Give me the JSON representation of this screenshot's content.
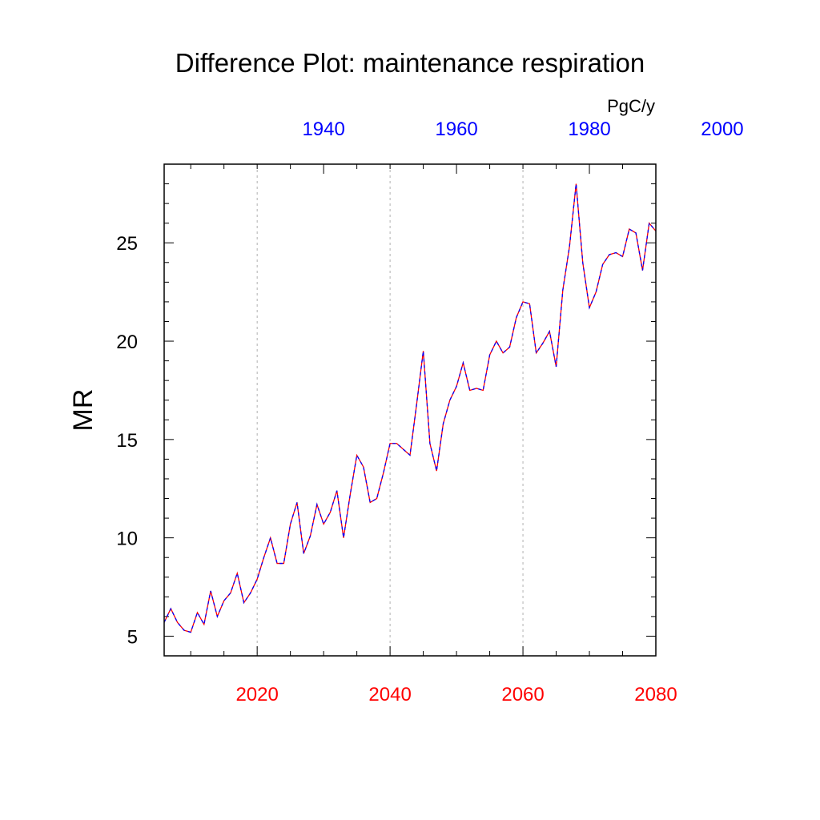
{
  "chart_data": {
    "type": "line",
    "title": "Difference Plot: maintenance respiration",
    "ylabel": "MR",
    "units": "PgC/y",
    "grid": "vertical dashed at bottom-axis major ticks",
    "legend": "none",
    "colors": {
      "bottom_axis": "#ff0000",
      "top_axis": "#0000ff",
      "series_a": "#ff0000",
      "series_b": "#0000ff"
    },
    "xlim": [
      2006,
      2080
    ],
    "ylim": [
      4,
      29
    ],
    "x_bottom_ticks": [
      2020,
      2040,
      2060,
      2080
    ],
    "x_bottom_tick_labels": [
      "2020",
      "2040",
      "2060",
      "2080"
    ],
    "x_top_ticks": [
      1940,
      1960,
      1980,
      2000
    ],
    "x_top_tick_labels": [
      "1940",
      "1960",
      "1980",
      "2000"
    ],
    "top_axis_offset_years": -90,
    "y_ticks": [
      5,
      10,
      15,
      20,
      25
    ],
    "y_tick_labels": [
      "5",
      "10",
      "15",
      "20",
      "25"
    ],
    "x": [
      2006,
      2007,
      2008,
      2009,
      2010,
      2011,
      2012,
      2013,
      2014,
      2015,
      2016,
      2017,
      2018,
      2019,
      2020,
      2021,
      2022,
      2023,
      2024,
      2025,
      2026,
      2027,
      2028,
      2029,
      2030,
      2031,
      2032,
      2033,
      2034,
      2035,
      2036,
      2037,
      2038,
      2039,
      2040,
      2041,
      2042,
      2043,
      2044,
      2045,
      2046,
      2047,
      2048,
      2049,
      2050,
      2051,
      2052,
      2053,
      2054,
      2055,
      2056,
      2057,
      2058,
      2059,
      2060,
      2061,
      2062,
      2063,
      2064,
      2065,
      2066,
      2067,
      2068,
      2069,
      2070,
      2071,
      2072,
      2073,
      2074,
      2075,
      2076,
      2077,
      2078,
      2079,
      2080
    ],
    "series": [
      {
        "values": [
          5.7,
          6.4,
          5.7,
          5.3,
          5.2,
          6.2,
          5.6,
          7.3,
          6.0,
          6.8,
          7.2,
          8.2,
          6.7,
          7.2,
          7.9,
          9.0,
          10.0,
          8.7,
          8.7,
          10.7,
          11.8,
          9.2,
          10.1,
          11.7,
          10.7,
          11.3,
          12.4,
          10.0,
          12.2,
          14.2,
          13.6,
          11.8,
          12.0,
          13.3,
          14.8,
          14.8,
          14.5,
          14.2,
          16.8,
          19.5,
          14.8,
          13.4,
          15.8,
          17.0,
          17.7,
          18.9,
          17.5,
          17.6,
          17.5,
          19.3,
          20.0,
          19.4,
          19.7,
          21.2,
          22.0,
          21.9,
          19.4,
          19.9,
          20.5,
          18.7,
          22.6,
          24.8,
          28.0,
          24.0,
          21.7,
          22.5,
          23.9,
          24.4,
          24.5,
          24.3,
          25.7,
          25.5,
          23.6,
          26.0,
          25.6
        ]
      },
      {
        "values": [
          5.7,
          6.4,
          5.7,
          5.3,
          5.2,
          6.2,
          5.6,
          7.3,
          6.0,
          6.8,
          7.2,
          8.2,
          6.7,
          7.2,
          7.9,
          9.0,
          10.0,
          8.7,
          8.7,
          10.7,
          11.8,
          9.2,
          10.1,
          11.7,
          10.7,
          11.3,
          12.4,
          10.0,
          12.2,
          14.2,
          13.6,
          11.8,
          12.0,
          13.3,
          14.8,
          14.8,
          14.5,
          14.2,
          16.8,
          19.5,
          14.8,
          13.4,
          15.8,
          17.0,
          17.7,
          18.9,
          17.5,
          17.6,
          17.5,
          19.3,
          20.0,
          19.4,
          19.7,
          21.2,
          22.0,
          21.9,
          19.4,
          19.9,
          20.5,
          18.7,
          22.6,
          24.8,
          28.0,
          24.0,
          21.7,
          22.5,
          23.9,
          24.4,
          24.5,
          24.3,
          25.7,
          25.5,
          23.6,
          26.0,
          25.6
        ]
      }
    ]
  }
}
